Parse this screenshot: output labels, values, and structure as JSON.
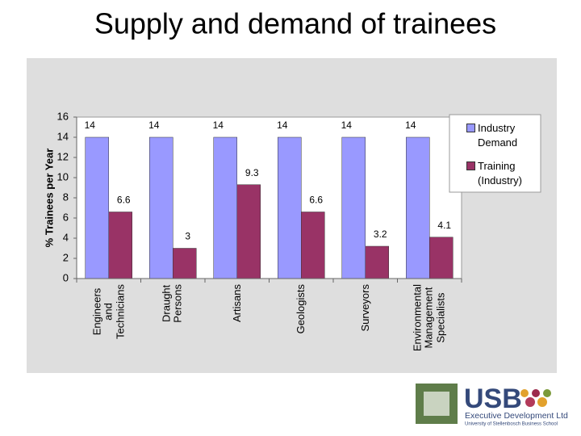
{
  "title": "Supply and demand of trainees",
  "chart_data": {
    "type": "bar",
    "y_label": "% Trainees per Year",
    "categories": [
      "Engineers\nand\nTechnicians",
      "Draught\nPersons",
      "Artisans",
      "Geologists",
      "Surveyors",
      "Environmental\nManagement\nSpecialists"
    ],
    "series": [
      {
        "name": "Industry Demand",
        "color": "#9999ff",
        "values": [
          14,
          14,
          14,
          14,
          14,
          14
        ]
      },
      {
        "name": "Training (Industry)",
        "color": "#993366",
        "values": [
          6.6,
          3,
          9.3,
          6.6,
          3.2,
          4.1
        ]
      }
    ],
    "ylim": [
      0,
      16
    ],
    "yticks": [
      0,
      2,
      4,
      6,
      8,
      10,
      12,
      14,
      16
    ]
  },
  "logo": {
    "brand": "USB",
    "line1": "Executive Development Ltd",
    "line2": "University of Stellenbosch Business School"
  }
}
